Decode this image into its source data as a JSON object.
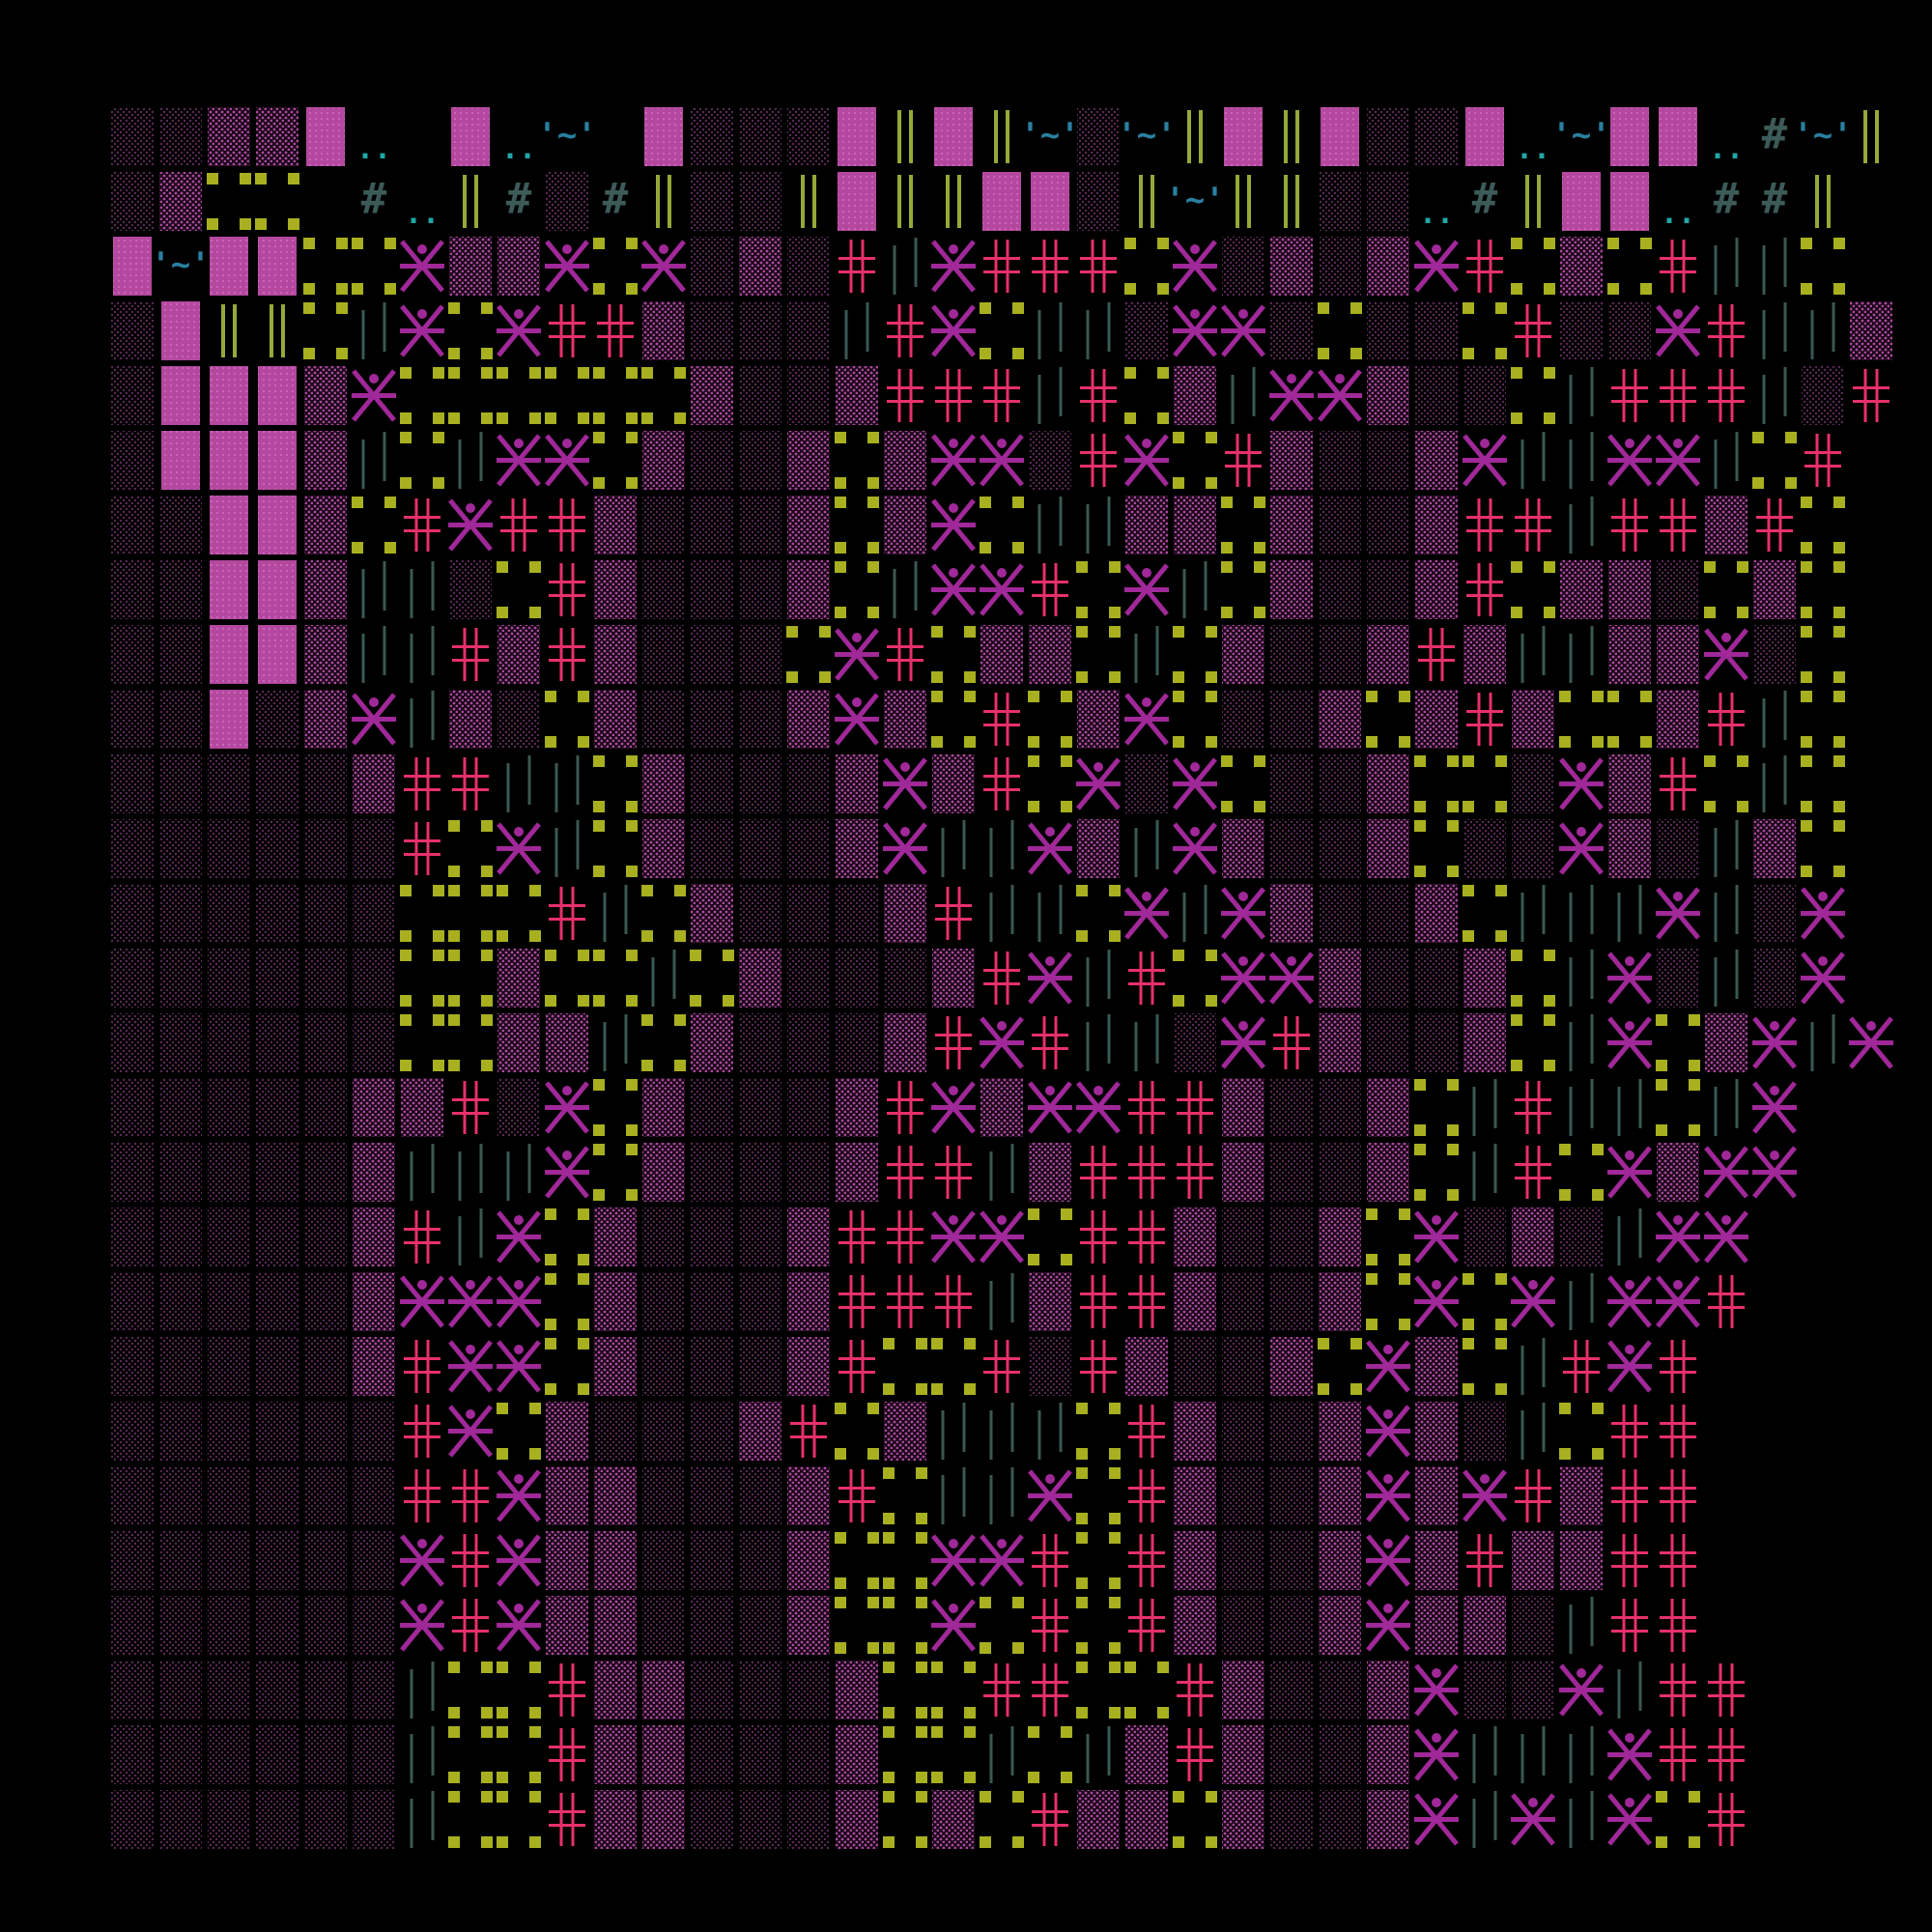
{
  "map": {
    "rows": [
      "ddDDBp Bpw BdddB=B=wdw=B=BddBpwBBphw=",
      "dDoo hp=hdh=dd=B==BBd=w==ddph=BBphh=",
      "BwBBooXDDXoXdDd+|X+++oXdDdDX+oDo+||o",
      "dB==o|XoX++Dddd|+Xo||dXXdoddo+ddX+||D",
      "dBBBDXooooooDddD+++|+oD|XXDddo|+++|d+",
      "dBBBD|o|XXoDddDoDXXd+Xo+DddDX||XX|o+",
      "ddBBDo+X++DdddDoDXo||DDoDddD++|++D+o",
      "ddBBD||do+DdddDo|XX+oX|oDddD+oDDdoDo",
      "ddBBD||+D+DdddoX+oDDo|oDddD+D||DDXdo",
      "ddBdDX|DdoDdddDXDo+oDXoddDoD+DooD+|o",
      "dddddD++||oDdddDXD+oXdXoddDoodXD+o|o",
      "dddddd+oX|oDdddDX||XD|XDddDoddXDd|Do",
      "ddddddooo+|oDdddD+||oX|XDddDo|||X|dX",
      "ddddddooDoo|oDdddD+X|+oXXDddDo|Xd|dX",
      "ddddddooDD|oDdddD+X+||dX+DddDo|XoDX|X",
      "dddddDD+dXoDdddD+XDXX++DddDo|+||o|X",
      "dddddD|||XoDdddD++|D+++DddDo|+oXDXX",
      "dddddD+|XoDdddD++XXo++DddDoXdDd|XX",
      "dddddDXXXoDdddD+++|D++DddDoXoX|XX+",
      "dddddD+XXoDdddD+oo+d+DddDoXDo|+X+",
      "dddddd+XoDdddD+oD|||o+DddDXDd|o++",
      "dddddd++XDDdddD+o||Xo+DddDXDX+D++",
      "ddddddX+XDDdddDooXX+o+DddDXD+DD++",
      "ddddddX+XDDdddDooXo+o+DddDXDDd|++",
      "dddddd|oo+DDdddDoo++oo+DddDXddX|++",
      "dddddd|oo+DDdddDoo|o|D+DddDX|||X++",
      "dddddd|oo+DDdddDoDo+DDoDddDX|X|Xo+"
    ]
  },
  "glyphs": {
    "hash": "#",
    "water": "'~'",
    "dots": ".."
  }
}
